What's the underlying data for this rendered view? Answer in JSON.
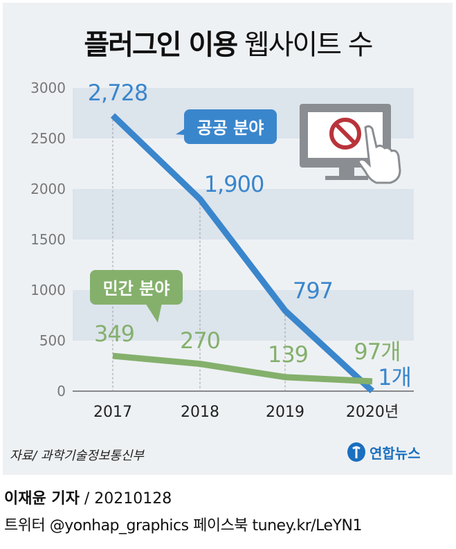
{
  "title": {
    "bold": "플러그인 이용",
    "light": "웹사이트 수"
  },
  "chart_data": {
    "type": "line",
    "categories": [
      "2017",
      "2018",
      "2019",
      "2020년"
    ],
    "ylim": [
      0,
      3000
    ],
    "yticks": [
      "0",
      "500",
      "1000",
      "1500",
      "2000",
      "2500",
      "3000"
    ],
    "series": [
      {
        "name": "공공 분야",
        "color": "#3a86cc",
        "values": [
          2728,
          1900,
          797,
          1
        ],
        "labels": [
          "2,728",
          "1,900",
          "797",
          "1개"
        ]
      },
      {
        "name": "민간 분야",
        "color": "#84b06c",
        "values": [
          349,
          270,
          139,
          97
        ],
        "labels": [
          "349",
          "270",
          "139",
          "97개"
        ]
      }
    ]
  },
  "icons": {
    "illustration": "monitor-with-prohibited-sign-and-hand-icon"
  },
  "source": "자료/ 과학기술정보통신부",
  "logo": "연합뉴스",
  "credit": {
    "reporter": "이재윤 기자",
    "date": "/ 20210128"
  },
  "sns": "트위터 @yonhap_graphics  페이스북 tuney.kr/LeYN1"
}
